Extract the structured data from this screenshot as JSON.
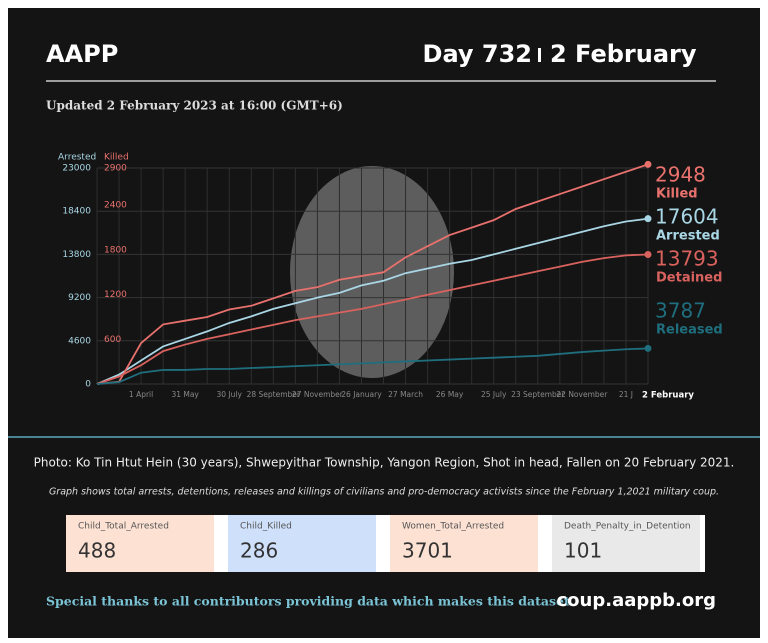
{
  "header": {
    "brand": "AAPP",
    "day": "Day 732",
    "date": "2 February",
    "updated": "Updated 2 February 2023 at 16:00 (GMT+6)"
  },
  "chart_data": {
    "type": "line",
    "categories": [
      null,
      null,
      "1 April",
      null,
      "31 May",
      null,
      "30 July",
      null,
      "28 September",
      null,
      "27 November",
      null,
      "26 January",
      null,
      "27 March",
      null,
      "26 May",
      null,
      "25 July",
      null,
      "23 September",
      null,
      "22 November",
      null,
      "21 J",
      "2 February"
    ],
    "ylim": [
      0,
      23000
    ],
    "yticks": [
      0,
      4600,
      9200,
      13800,
      18400,
      23000
    ],
    "y2lim": [
      0,
      2900
    ],
    "y2ticks": [
      600,
      1200,
      1800,
      2400,
      2900
    ],
    "grid": true,
    "series": [
      {
        "name": "Arrested",
        "color": "#a9d6e5",
        "values": [
          0,
          1000,
          2500,
          4000,
          4800,
          5600,
          6500,
          7200,
          8000,
          8600,
          9200,
          9700,
          10500,
          11000,
          11800,
          12300,
          12800,
          13200,
          13800,
          14400,
          15000,
          15600,
          16200,
          16800,
          17300,
          17604
        ]
      },
      {
        "name": "Killed",
        "color": "#e8716d",
        "axis": "y2",
        "values": [
          0,
          30,
          550,
          800,
          850,
          900,
          1000,
          1050,
          1150,
          1250,
          1300,
          1400,
          1450,
          1500,
          1700,
          1850,
          2000,
          2100,
          2200,
          2350,
          2450,
          2550,
          2650,
          2750,
          2850,
          2948
        ]
      },
      {
        "name": "Detained",
        "color": "#d9625e",
        "values": [
          0,
          800,
          2000,
          3500,
          4200,
          4800,
          5300,
          5800,
          6300,
          6800,
          7200,
          7600,
          8000,
          8500,
          9000,
          9500,
          10000,
          10500,
          11000,
          11500,
          12000,
          12500,
          13000,
          13400,
          13700,
          13793
        ]
      },
      {
        "name": "Released",
        "color": "#1f6e7e",
        "values": [
          0,
          200,
          1200,
          1500,
          1500,
          1600,
          1600,
          1700,
          1800,
          1900,
          2000,
          2100,
          2200,
          2300,
          2400,
          2500,
          2600,
          2700,
          2800,
          2900,
          3000,
          3200,
          3400,
          3550,
          3700,
          3787
        ]
      }
    ]
  },
  "caption": "Photo: Ko Tin Htut Hein (30 years),  Shwepyithar Township, Yangon Region, Shot in head, Fallen on 20 February 2021.",
  "description": "Graph shows total arrests, detentions, releases and killings of civilians and pro-democracy activists since the February 1,2021 military coup.",
  "cards": [
    {
      "label": "Child_Total_Arrested",
      "value": 488
    },
    {
      "label": "Child_Killed",
      "value": 286
    },
    {
      "label": "Women_Total_Arrested",
      "value": 3701
    },
    {
      "label": "Death_Penalty_in_Detention",
      "value": 101
    }
  ],
  "footer": {
    "thanks": "Special thanks to all contributors providing data which makes this dataset.",
    "url": "coup.aappb.org"
  }
}
